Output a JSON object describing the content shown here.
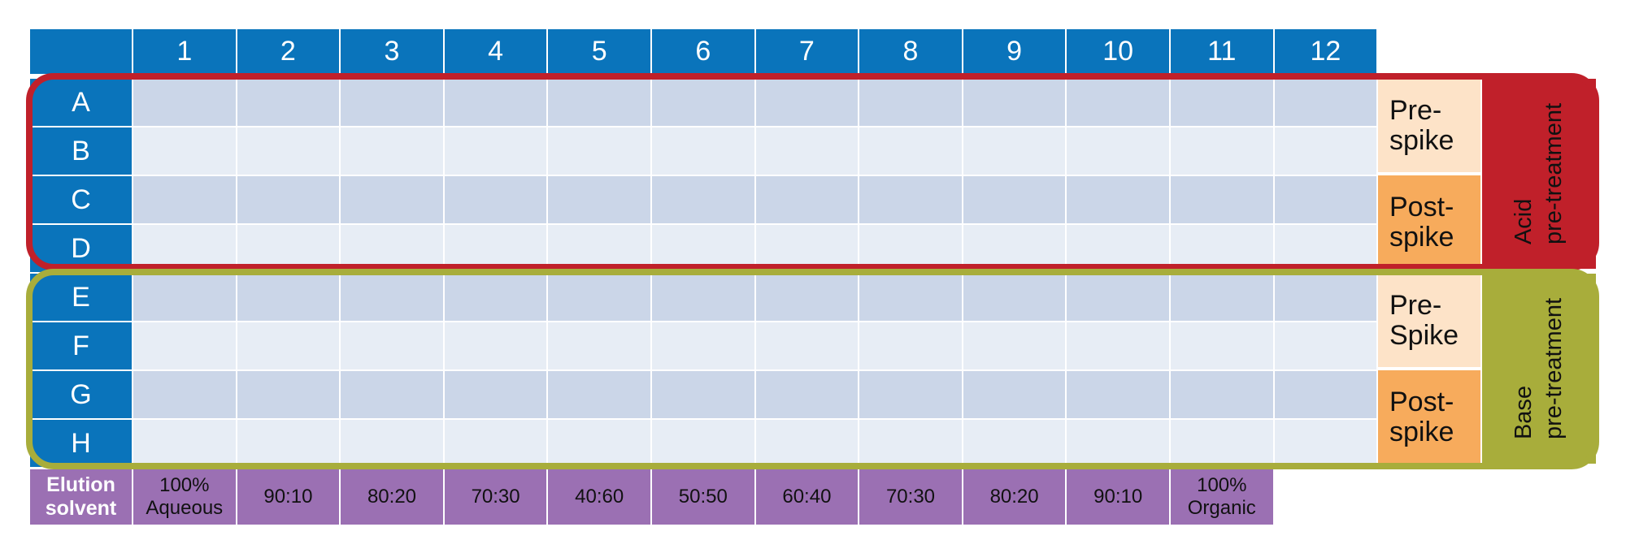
{
  "columns": [
    "1",
    "2",
    "3",
    "4",
    "5",
    "6",
    "7",
    "8",
    "9",
    "10",
    "11",
    "12"
  ],
  "rows": [
    "A",
    "B",
    "C",
    "D",
    "E",
    "F",
    "G",
    "H"
  ],
  "spike_labels": {
    "acid_pre": "Pre-\nspike",
    "acid_post": "Post-\nspike",
    "base_pre": "Pre-\nSpike",
    "base_post": "Post-\nspike"
  },
  "treatments": {
    "acid": "Acid\npre-treatment",
    "base": "Base\npre-treatment"
  },
  "elution": {
    "header": "Elution\nsolvent",
    "values": [
      "100%\nAqueous",
      "90:10",
      "80:20",
      "70:30",
      "40:60",
      "50:50",
      "60:40",
      "70:30",
      "80:20",
      "90:10",
      "100%\nOrganic"
    ]
  },
  "colors": {
    "header_blue": "#0a74bb",
    "well_dark": "#cbd6e8",
    "well_light": "#e7edf5",
    "pre_spike": "#fde3c8",
    "post_spike": "#f7ab5c",
    "acid_red": "#c0202a",
    "base_olive": "#a8ad3b",
    "elution_purple": "#9b70b3"
  }
}
